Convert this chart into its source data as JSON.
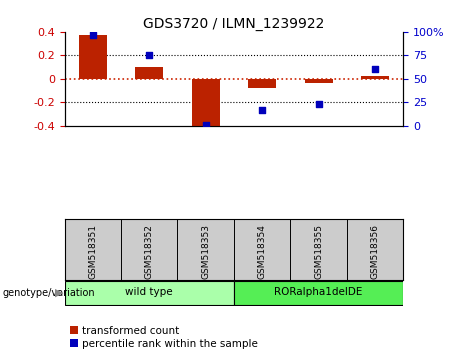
{
  "title": "GDS3720 / ILMN_1239922",
  "samples": [
    "GSM518351",
    "GSM518352",
    "GSM518353",
    "GSM518354",
    "GSM518355",
    "GSM518356"
  ],
  "bar_values": [
    0.37,
    0.1,
    -0.41,
    -0.08,
    -0.04,
    0.02
  ],
  "scatter_values_pct": [
    97,
    75,
    1,
    17,
    23,
    60
  ],
  "bar_color": "#bb2200",
  "scatter_color": "#0000bb",
  "ylim_left": [
    -0.4,
    0.4
  ],
  "ylim_right": [
    0,
    100
  ],
  "yticks_left": [
    -0.4,
    -0.2,
    0.0,
    0.2,
    0.4
  ],
  "ytick_labels_left": [
    "-0.4",
    "-0.2",
    "0",
    "0.2",
    "0.4"
  ],
  "yticks_right": [
    0,
    25,
    50,
    75,
    100
  ],
  "ytick_labels_right": [
    "0",
    "25",
    "50",
    "75",
    "100%"
  ],
  "groups": [
    {
      "label": "wild type",
      "indices": [
        0,
        1,
        2
      ],
      "color": "#aaffaa"
    },
    {
      "label": "RORalpha1delDE",
      "indices": [
        3,
        4,
        5
      ],
      "color": "#55ee55"
    }
  ],
  "group_label": "genotype/variation",
  "legend_bar": "transformed count",
  "legend_scatter": "percentile rank within the sample",
  "hline_color": "#cc2200",
  "dotted_color": "#000000",
  "bg_color": "#ffffff",
  "tick_color_left": "#cc0000",
  "tick_color_right": "#0000cc",
  "sample_bg_color": "#cccccc",
  "bar_width": 0.5
}
